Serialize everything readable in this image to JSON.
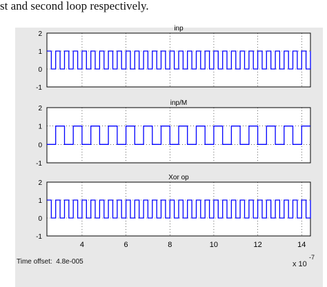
{
  "caption": "st and second loop respectively.",
  "time_offset": {
    "label": "Time offset:",
    "value": "4.8e-005"
  },
  "x_exponent": {
    "base": "x 10",
    "power": "-7"
  },
  "x_ticks": [
    4,
    6,
    8,
    10,
    12,
    14
  ],
  "y_ticks": [
    2,
    1,
    0,
    -1
  ],
  "colors": {
    "background": "#e8e8e8",
    "plot_area": "#ffffff",
    "signal": "#0000ff"
  },
  "chart_data": [
    {
      "type": "line",
      "title": "inp",
      "xlim": [
        2.4,
        14.4
      ],
      "ylim": [
        -1,
        2
      ],
      "grid": true,
      "series": [
        {
          "signal": "square",
          "low": 0,
          "high": 1,
          "period": 0.4,
          "start_phase": "high"
        }
      ]
    },
    {
      "type": "line",
      "title": "inp/M",
      "xlim": [
        2.4,
        14.4
      ],
      "ylim": [
        -1,
        2
      ],
      "grid": true,
      "series": [
        {
          "signal": "square",
          "low": 0,
          "high": 1,
          "period": 0.8,
          "start_phase": "low"
        }
      ]
    },
    {
      "type": "line",
      "title": "Xor op",
      "xlim": [
        2.4,
        14.4
      ],
      "ylim": [
        -1,
        2
      ],
      "grid": true,
      "series": [
        {
          "signal": "square",
          "low": 0,
          "high": 1,
          "period": 0.4,
          "start_phase": "high"
        }
      ]
    }
  ]
}
